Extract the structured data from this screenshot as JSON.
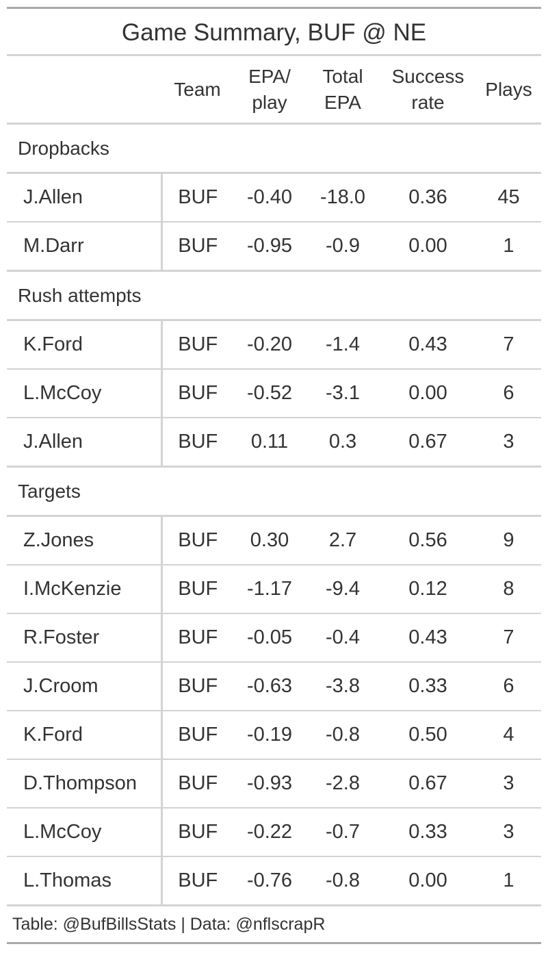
{
  "title": "Game Summary, BUF @ NE",
  "columns": {
    "name": "",
    "team": "Team",
    "epa_play_1": "EPA/",
    "epa_play_2": "play",
    "total_epa_1": "Total",
    "total_epa_2": "EPA",
    "success_1": "Success",
    "success_2": "rate",
    "plays": "Plays"
  },
  "groups": [
    {
      "label": "Dropbacks",
      "rows": [
        {
          "name": "J.Allen",
          "team": "BUF",
          "epa_play": "-0.40",
          "total_epa": "-18.0",
          "success_rate": "0.36",
          "plays": "45"
        },
        {
          "name": "M.Darr",
          "team": "BUF",
          "epa_play": "-0.95",
          "total_epa": "-0.9",
          "success_rate": "0.00",
          "plays": "1"
        }
      ]
    },
    {
      "label": "Rush attempts",
      "rows": [
        {
          "name": "K.Ford",
          "team": "BUF",
          "epa_play": "-0.20",
          "total_epa": "-1.4",
          "success_rate": "0.43",
          "plays": "7"
        },
        {
          "name": "L.McCoy",
          "team": "BUF",
          "epa_play": "-0.52",
          "total_epa": "-3.1",
          "success_rate": "0.00",
          "plays": "6"
        },
        {
          "name": "J.Allen",
          "team": "BUF",
          "epa_play": "0.11",
          "total_epa": "0.3",
          "success_rate": "0.67",
          "plays": "3"
        }
      ]
    },
    {
      "label": "Targets",
      "rows": [
        {
          "name": "Z.Jones",
          "team": "BUF",
          "epa_play": "0.30",
          "total_epa": "2.7",
          "success_rate": "0.56",
          "plays": "9"
        },
        {
          "name": "I.McKenzie",
          "team": "BUF",
          "epa_play": "-1.17",
          "total_epa": "-9.4",
          "success_rate": "0.12",
          "plays": "8"
        },
        {
          "name": "R.Foster",
          "team": "BUF",
          "epa_play": "-0.05",
          "total_epa": "-0.4",
          "success_rate": "0.43",
          "plays": "7"
        },
        {
          "name": "J.Croom",
          "team": "BUF",
          "epa_play": "-0.63",
          "total_epa": "-3.8",
          "success_rate": "0.33",
          "plays": "6"
        },
        {
          "name": "K.Ford",
          "team": "BUF",
          "epa_play": "-0.19",
          "total_epa": "-0.8",
          "success_rate": "0.50",
          "plays": "4"
        },
        {
          "name": "D.Thompson",
          "team": "BUF",
          "epa_play": "-0.93",
          "total_epa": "-2.8",
          "success_rate": "0.67",
          "plays": "3"
        },
        {
          "name": "L.McCoy",
          "team": "BUF",
          "epa_play": "-0.22",
          "total_epa": "-0.7",
          "success_rate": "0.33",
          "plays": "3"
        },
        {
          "name": "L.Thomas",
          "team": "BUF",
          "epa_play": "-0.76",
          "total_epa": "-0.8",
          "success_rate": "0.00",
          "plays": "1"
        }
      ]
    }
  ],
  "footer": "Table: @BufBillsStats | Data: @nflscrapR"
}
